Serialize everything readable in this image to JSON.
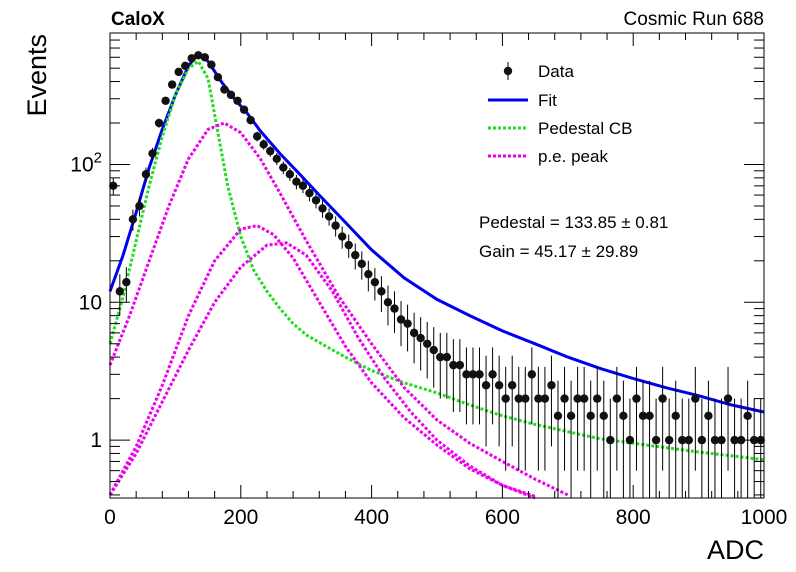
{
  "header": {
    "left": "CaloX",
    "right": "Cosmic Run 688"
  },
  "chart_data": {
    "type": "scatter",
    "title": "",
    "xlabel": "ADC",
    "ylabel": "Events",
    "xlim": [
      0,
      1000
    ],
    "ylim": [
      0.38,
      900
    ],
    "yscale": "log",
    "grid": false,
    "x_ticks": [
      0,
      200,
      400,
      600,
      800,
      1000
    ],
    "x_tick_labels": [
      "0",
      "200",
      "400",
      "600",
      "800",
      "1000"
    ],
    "y_ticks": [
      1,
      10,
      100
    ],
    "y_tick_labels": [
      "1",
      "10",
      "10^2"
    ],
    "legend": {
      "placement": "top-right",
      "entries": [
        {
          "label": "Data",
          "kind": "marker",
          "color": "#000000"
        },
        {
          "label": "Fit",
          "kind": "solid",
          "color": "#0000ee"
        },
        {
          "label": "Pedestal CB",
          "kind": "dotted",
          "color": "#22dd22"
        },
        {
          "label": "p.e. peak",
          "kind": "dotted",
          "color": "#ee00ee"
        }
      ]
    },
    "annotations": [
      "Pedestal = 133.85 ± 0.81",
      "Gain = 45.17 ± 29.89"
    ],
    "fit_params": {
      "pedestal": 133.85,
      "pedestal_err": 0.81,
      "gain": 45.17,
      "gain_err": 29.89
    },
    "series": [
      {
        "name": "Data",
        "kind": "points",
        "x": [
          5,
          15,
          25,
          35,
          45,
          55,
          65,
          75,
          85,
          95,
          105,
          115,
          125,
          135,
          145,
          155,
          165,
          175,
          185,
          195,
          205,
          215,
          225,
          235,
          245,
          255,
          265,
          275,
          285,
          295,
          305,
          315,
          325,
          335,
          345,
          355,
          365,
          375,
          385,
          395,
          405,
          415,
          425,
          435,
          445,
          455,
          465,
          475,
          485,
          495,
          505,
          515,
          525,
          535,
          545,
          555,
          565,
          575,
          585,
          595,
          605,
          615,
          625,
          635,
          645,
          655,
          665,
          675,
          685,
          695,
          705,
          715,
          725,
          735,
          745,
          755,
          765,
          775,
          785,
          795,
          805,
          815,
          825,
          835,
          845,
          855,
          865,
          875,
          885,
          895,
          905,
          915,
          925,
          935,
          945,
          955,
          965,
          975,
          985,
          995
        ],
        "y": [
          70,
          12,
          14,
          40,
          50,
          85,
          120,
          200,
          290,
          380,
          470,
          520,
          590,
          620,
          600,
          530,
          430,
          350,
          320,
          290,
          250,
          210,
          160,
          140,
          125,
          110,
          95,
          85,
          75,
          70,
          62,
          55,
          48,
          42,
          36,
          30,
          26,
          22,
          19,
          16,
          14,
          12,
          10,
          9,
          7.5,
          7,
          6,
          5.5,
          5,
          4.5,
          4,
          4,
          3.5,
          3.5,
          3,
          3,
          3,
          2.5,
          3,
          2.5,
          2,
          2.5,
          2,
          2,
          3,
          2,
          2,
          2.5,
          1.5,
          2,
          1.5,
          2,
          2,
          1.5,
          2,
          1.5,
          1,
          2,
          1.5,
          1,
          2,
          1.5,
          1.5,
          1,
          2,
          1,
          1.5,
          1,
          1,
          2,
          1,
          1.5,
          1,
          1,
          2,
          1,
          1,
          1.5,
          1,
          1
        ],
        "err": [
          10,
          4,
          4,
          7,
          8,
          10,
          12,
          15,
          18,
          20,
          22,
          23,
          24,
          25,
          25,
          23,
          21,
          19,
          18,
          17,
          16,
          15,
          13,
          12,
          11,
          11,
          10,
          9,
          9,
          8,
          8,
          7,
          7,
          6,
          6,
          5.5,
          5,
          4.7,
          4.4,
          4,
          3.7,
          3.5,
          3.2,
          3,
          2.7,
          2.6,
          2.4,
          2.3,
          2.2,
          2.1,
          2,
          2,
          1.9,
          1.9,
          1.7,
          1.7,
          1.7,
          1.6,
          1.7,
          1.6,
          1.4,
          1.6,
          1.4,
          1.4,
          1.7,
          1.4,
          1.4,
          1.6,
          1.2,
          1.4,
          1.2,
          1.4,
          1.4,
          1.2,
          1.4,
          1.2,
          1,
          1.4,
          1.2,
          1,
          1.4,
          1.2,
          1.2,
          1,
          1.4,
          1,
          1.2,
          1,
          1,
          1.4,
          1,
          1.2,
          1,
          1,
          1.4,
          1,
          1,
          1.2,
          1,
          1
        ]
      },
      {
        "name": "Fit",
        "kind": "line",
        "x": [
          0,
          20,
          40,
          60,
          80,
          100,
          120,
          135,
          150,
          170,
          190,
          210,
          230,
          260,
          290,
          320,
          360,
          400,
          450,
          500,
          550,
          600,
          650,
          700,
          750,
          800,
          850,
          900,
          950,
          1000
        ],
        "y": [
          12,
          22,
          45,
          95,
          180,
          320,
          520,
          640,
          560,
          400,
          300,
          235,
          175,
          120,
          85,
          60,
          38,
          24,
          15,
          10.5,
          8,
          6.2,
          5,
          4,
          3.3,
          2.8,
          2.4,
          2.1,
          1.8,
          1.6
        ]
      },
      {
        "name": "Pedestal CB",
        "kind": "line",
        "x": [
          0,
          20,
          40,
          60,
          80,
          100,
          120,
          135,
          150,
          165,
          180,
          200,
          220,
          240,
          260,
          280,
          300,
          330,
          360,
          400,
          450,
          500,
          550,
          600,
          650,
          700,
          750,
          800,
          850,
          900,
          950,
          1000
        ],
        "y": [
          5,
          11,
          28,
          70,
          160,
          320,
          500,
          560,
          420,
          170,
          70,
          30,
          17,
          12,
          9,
          7,
          5.8,
          4.8,
          4,
          3.2,
          2.6,
          2.2,
          1.8,
          1.5,
          1.3,
          1.15,
          1.02,
          0.95,
          0.88,
          0.82,
          0.77,
          0.72
        ]
      },
      {
        "name": "p.e. peak 1",
        "kind": "line",
        "x": [
          0,
          30,
          60,
          90,
          120,
          150,
          175,
          200,
          230,
          260,
          300,
          350,
          400,
          450,
          500,
          550,
          600,
          650,
          700
        ],
        "y": [
          3.5,
          8,
          20,
          50,
          110,
          180,
          200,
          170,
          110,
          62,
          28,
          11,
          5,
          2.4,
          1.4,
          0.95,
          0.7,
          0.52,
          0.4
        ]
      },
      {
        "name": "p.e. peak 2",
        "kind": "line",
        "x": [
          0,
          40,
          80,
          120,
          160,
          200,
          225,
          250,
          280,
          320,
          360,
          400,
          450,
          500,
          550,
          600,
          650
        ],
        "y": [
          0.4,
          0.9,
          2.5,
          8,
          20,
          34,
          36,
          31,
          21,
          10,
          4.8,
          2.6,
          1.45,
          0.92,
          0.62,
          0.47,
          0.39
        ]
      },
      {
        "name": "p.e. peak 3",
        "kind": "line",
        "x": [
          0,
          40,
          80,
          120,
          160,
          200,
          240,
          270,
          300,
          340,
          380,
          420,
          460,
          500,
          550,
          600,
          650
        ],
        "y": [
          0.4,
          0.8,
          1.9,
          4.5,
          10,
          18,
          26,
          27,
          22,
          12,
          5.5,
          2.8,
          1.6,
          1,
          0.65,
          0.47,
          0.38
        ]
      }
    ]
  }
}
